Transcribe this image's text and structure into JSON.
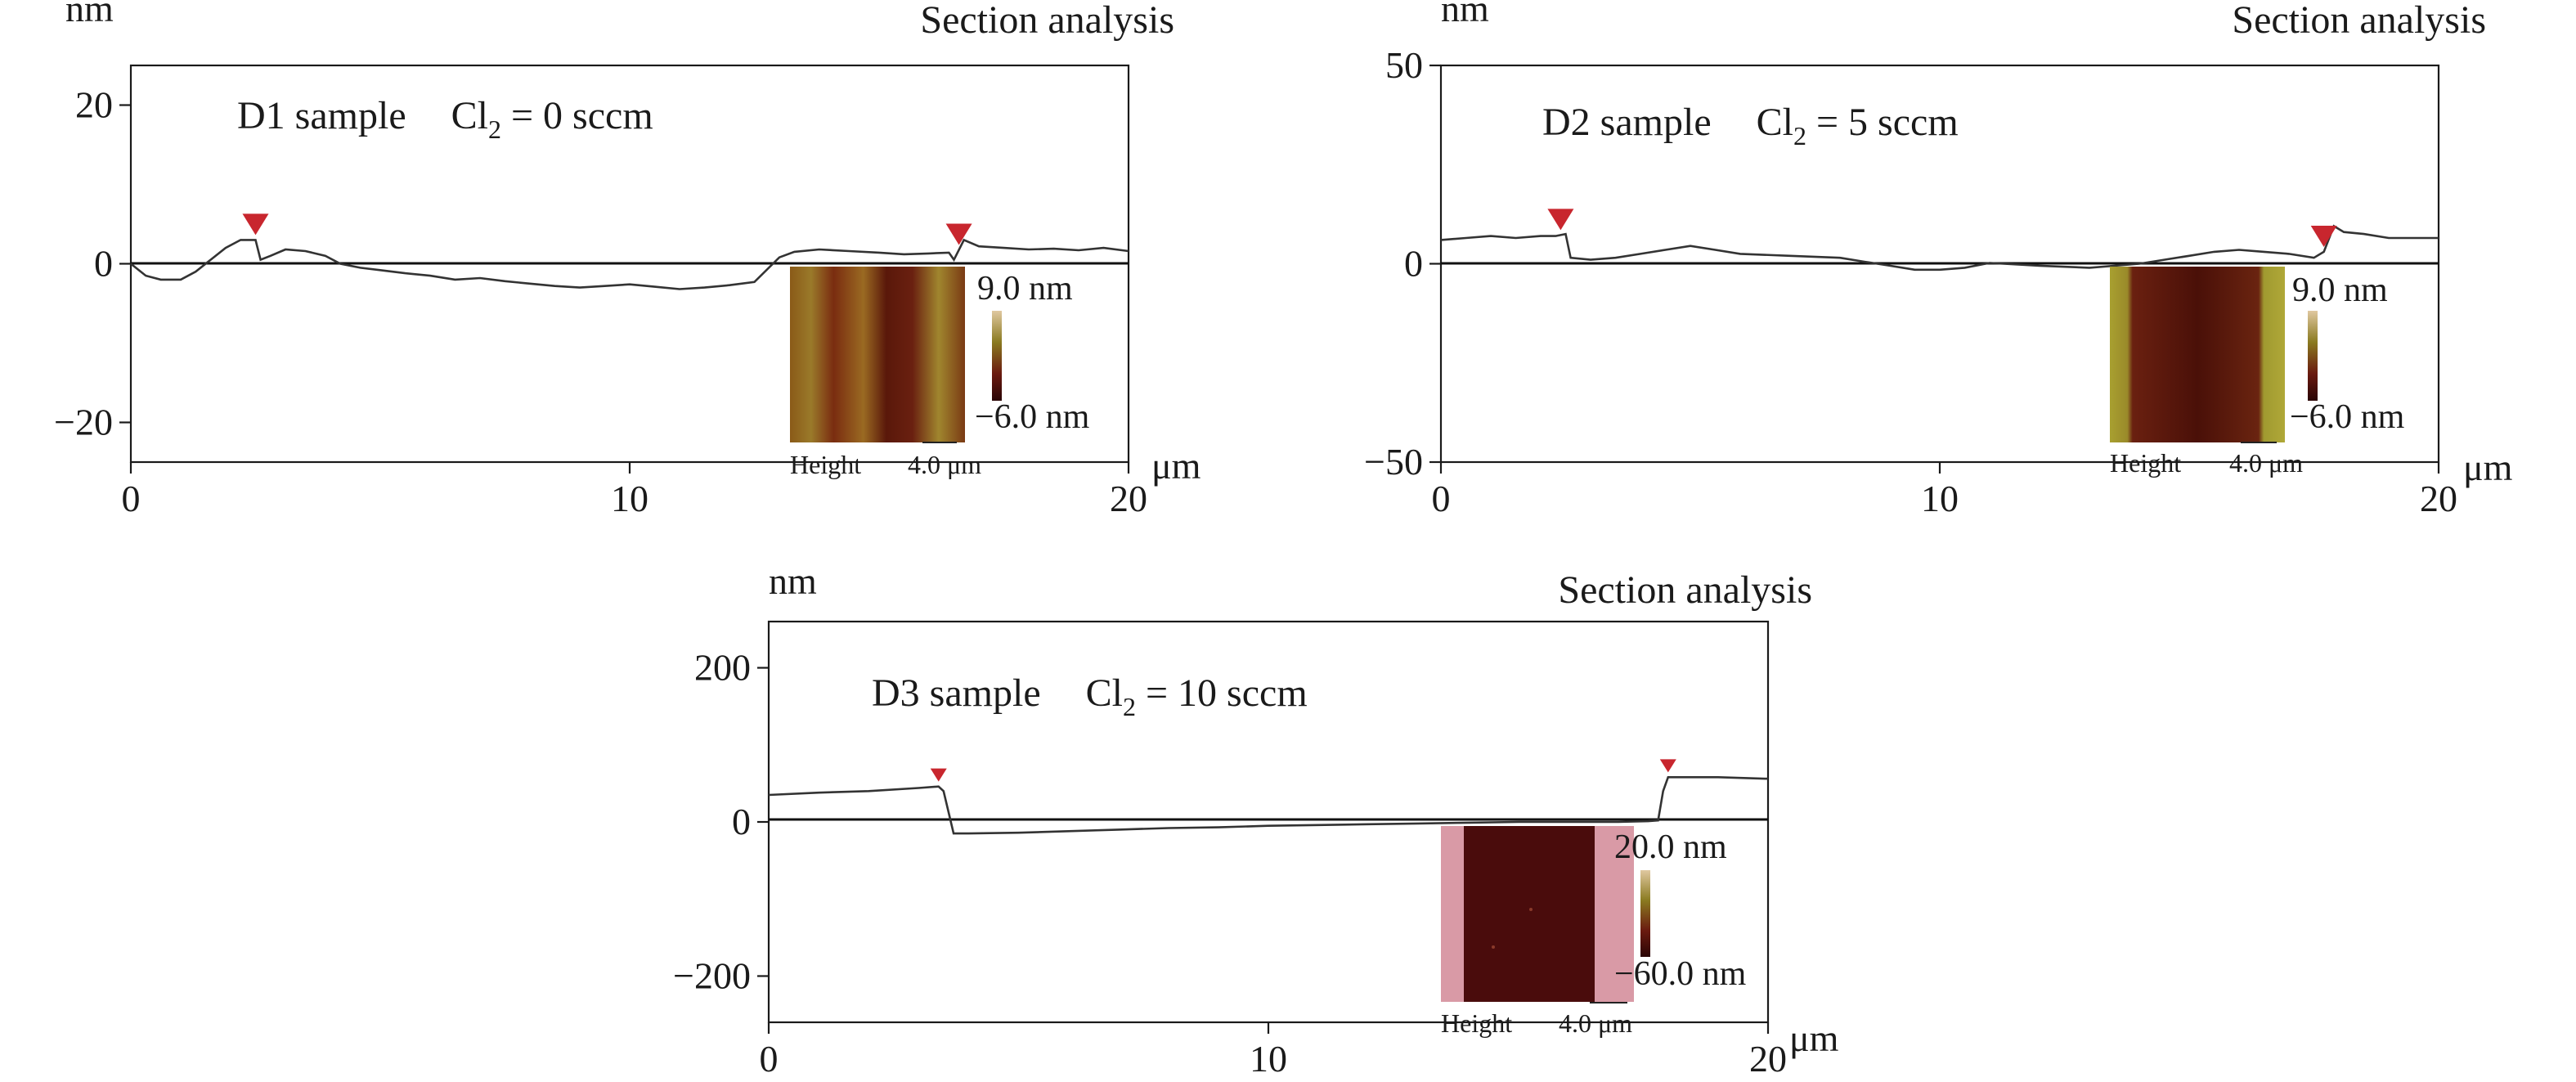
{
  "colors": {
    "profile_line": "#333333",
    "marker": "#c8262e",
    "afm_dark": "#4a1008",
    "afm_mid": "#7a2a10",
    "afm_light": "#9a7a2a",
    "afm_pink": "#d99aa6",
    "colorbar_top": "#d8c28c",
    "colorbar_mid": "#7a6a22",
    "colorbar_bottom": "#3a0808"
  },
  "chart_data": [
    {
      "type": "line",
      "id": "d1",
      "section_label": "Section analysis",
      "sample": "D1 sample",
      "gas_prefix": "Cl",
      "gas_sub": "2",
      "gas_value": " = 0 sccm",
      "ylabel": "nm",
      "xlabel": "μm",
      "xlim": [
        0,
        20
      ],
      "ylim": [
        -25,
        25
      ],
      "xticks": [
        0,
        10,
        20
      ],
      "xtick_labels": [
        "0",
        "10",
        "20"
      ],
      "yticks": [
        -20,
        0,
        20
      ],
      "ytick_labels": [
        "−20",
        "0",
        "20"
      ],
      "series": [
        {
          "x": [
            0,
            0.3,
            0.6,
            1.0,
            1.3,
            1.6,
            1.9,
            2.2,
            2.5,
            2.6,
            2.8,
            3.1,
            3.5,
            3.9,
            4.2,
            4.6,
            5.0,
            5.5,
            6.0,
            6.5,
            7.0,
            7.5,
            8.0,
            8.5,
            9.0,
            9.5,
            10.0,
            10.5,
            11.0,
            11.5,
            12.0,
            12.5,
            13.0,
            13.3,
            13.8,
            14.4,
            15.0,
            15.5,
            16.0,
            16.4,
            16.5,
            16.7,
            17.0,
            17.5,
            18.0,
            18.5,
            19.0,
            19.5,
            20.0
          ],
          "y": [
            0,
            -1.5,
            -2.0,
            -2.0,
            -1.0,
            0.5,
            2.0,
            3.0,
            3.0,
            0.5,
            1.0,
            1.8,
            1.6,
            1.0,
            0,
            -0.5,
            -0.8,
            -1.2,
            -1.5,
            -2.0,
            -1.8,
            -2.2,
            -2.5,
            -2.8,
            -3.0,
            -2.8,
            -2.6,
            -2.9,
            -3.2,
            -3.0,
            -2.7,
            -2.3,
            0.8,
            1.5,
            1.8,
            1.6,
            1.4,
            1.2,
            1.3,
            1.4,
            0.5,
            3.0,
            2.2,
            2.0,
            1.8,
            1.9,
            1.7,
            2.0,
            1.6
          ]
        }
      ],
      "markers_x": [
        2.5,
        16.6
      ],
      "inset": {
        "height_label": "Height",
        "scale_label": "4.0 μm",
        "cbar_max": "9.0 nm",
        "cbar_min": "−6.0 nm"
      }
    },
    {
      "type": "line",
      "id": "d2",
      "section_label": "Section analysis",
      "sample": "D2 sample",
      "gas_prefix": "Cl",
      "gas_sub": "2",
      "gas_value": " = 5 sccm",
      "ylabel": "nm",
      "xlabel": "μm",
      "xlim": [
        0,
        20
      ],
      "ylim": [
        -50,
        50
      ],
      "xticks": [
        0,
        10,
        20
      ],
      "xtick_labels": [
        "0",
        "10",
        "20"
      ],
      "yticks": [
        -50,
        0,
        50
      ],
      "ytick_labels": [
        "−50",
        "0",
        "50"
      ],
      "series": [
        {
          "x": [
            0,
            0.5,
            1.0,
            1.5,
            2.0,
            2.3,
            2.5,
            2.6,
            3.0,
            3.5,
            4.0,
            4.5,
            5.0,
            5.5,
            6.0,
            7.0,
            8.0,
            8.5,
            9.0,
            9.5,
            10.0,
            10.5,
            11.0,
            12.0,
            13.0,
            14.0,
            14.5,
            15.0,
            15.5,
            16.0,
            16.5,
            17.0,
            17.5,
            17.7,
            17.9,
            18.1,
            18.5,
            19.0,
            20.0
          ],
          "y": [
            6,
            6.5,
            7,
            6.5,
            7,
            7,
            7.5,
            1.5,
            1,
            1.5,
            2.5,
            3.5,
            4.5,
            3.5,
            2.5,
            2,
            1.5,
            0.5,
            -0.5,
            -1.5,
            -1.5,
            -1.0,
            0.2,
            -0.5,
            -1,
            0,
            1,
            2,
            3,
            3.5,
            3,
            2.5,
            1.5,
            3,
            9.5,
            8,
            7.5,
            6.5,
            6.5
          ]
        }
      ],
      "markers_x": [
        2.4,
        17.7
      ],
      "inset": {
        "height_label": "Height",
        "scale_label": "4.0 μm",
        "cbar_max": "9.0 nm",
        "cbar_min": "−6.0 nm"
      }
    },
    {
      "type": "line",
      "id": "d3",
      "section_label": "Section analysis",
      "sample": "D3 sample",
      "gas_prefix": "Cl",
      "gas_sub": "2",
      "gas_value": " = 10 sccm",
      "ylabel": "nm",
      "xlabel": "μm",
      "xlim": [
        0,
        20
      ],
      "ylim": [
        -260,
        260
      ],
      "xticks": [
        0,
        10,
        20
      ],
      "xtick_labels": [
        "0",
        "10",
        "20"
      ],
      "yticks": [
        -200,
        0,
        200
      ],
      "ytick_labels": [
        "−200",
        "0",
        "200"
      ],
      "series": [
        {
          "x": [
            0,
            1.0,
            2.0,
            3.0,
            3.4,
            3.5,
            3.7,
            4.0,
            5.0,
            6.0,
            7.0,
            8.0,
            9.0,
            10.0,
            11.0,
            12.0,
            13.0,
            14.0,
            15.0,
            16.0,
            17.0,
            17.6,
            17.8,
            17.9,
            18.0,
            18.3,
            19.0,
            20.0
          ],
          "y": [
            35,
            38,
            40,
            44,
            46,
            40,
            -15,
            -15,
            -14,
            -12,
            -10,
            -8,
            -7,
            -5,
            -4,
            -3,
            -2,
            -1,
            0,
            0,
            0,
            1,
            2,
            40,
            58,
            58,
            58,
            56
          ]
        }
      ],
      "markers_x": [
        3.4,
        18.0
      ],
      "inset": {
        "height_label": "Height",
        "scale_label": "4.0 μm",
        "cbar_max": "20.0 nm",
        "cbar_min": "−60.0 nm"
      }
    }
  ]
}
